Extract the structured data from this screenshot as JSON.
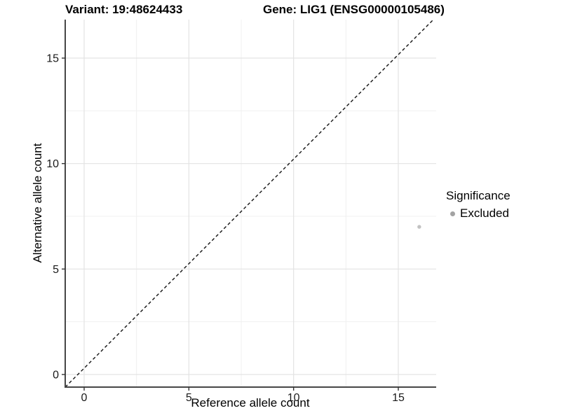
{
  "header": {
    "variant_title": "Variant: 19:48624433",
    "gene_title": "Gene: LIG1 (ENSG00000105486)"
  },
  "chart_data": {
    "type": "scatter",
    "title": "Variant: 19:48624433   Gene: LIG1 (ENSG00000105486)",
    "xlabel": "Reference allele count",
    "ylabel": "Alternative allele count",
    "x_ticks": [
      0,
      5,
      10,
      15
    ],
    "y_ticks": [
      0,
      5,
      10,
      15
    ],
    "x_minor_breaks": [
      2.5,
      7.5,
      12.5
    ],
    "y_minor_breaks": [
      2.5,
      7.5,
      12.5
    ],
    "xlim": [
      -0.9,
      16.8
    ],
    "ylim": [
      -0.6,
      16.8
    ],
    "grid": "major+minor",
    "identity_line": {
      "equation": "y = x",
      "style": "dashed",
      "color": "#111111"
    },
    "series": [
      {
        "name": "Excluded",
        "color": "#c2c2c2",
        "points": [
          {
            "x": 16,
            "y": 7
          }
        ]
      }
    ],
    "legend": {
      "title": "Significance",
      "position": "right",
      "items": [
        {
          "label": "Excluded",
          "color": "#a3a3a3"
        }
      ]
    },
    "style": {
      "background": "#ffffff",
      "axis_line": "#474747",
      "tick": "#333333",
      "tick_label": "#1a1a1a",
      "grid_major": "#e3e3e3",
      "grid_minor": "#f0f0f0"
    }
  }
}
